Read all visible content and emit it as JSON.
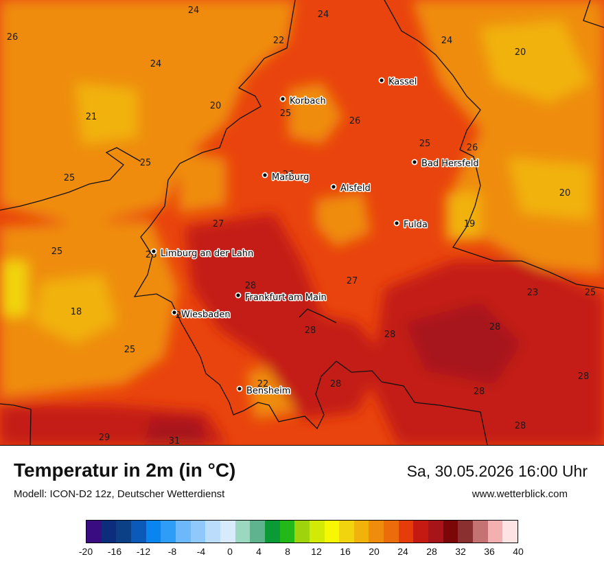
{
  "map": {
    "cities": [
      {
        "name": "Kassel",
        "dot": [
          556,
          117
        ],
        "label": [
          566,
          119
        ]
      },
      {
        "name": "Korbach",
        "dot": [
          412,
          144
        ],
        "label": [
          422,
          147
        ]
      },
      {
        "name": "Bad Hersfeld",
        "dot": [
          604,
          236
        ],
        "label": [
          614,
          238
        ]
      },
      {
        "name": "Marburg",
        "dot": [
          386,
          255
        ],
        "label": [
          396,
          258
        ]
      },
      {
        "name": "Alsfeld",
        "dot": [
          486,
          272
        ],
        "label": [
          496,
          274
        ]
      },
      {
        "name": "Fulda",
        "dot": [
          578,
          325
        ],
        "label": [
          588,
          327
        ]
      },
      {
        "name": "Limburg an der Lahn",
        "dot": [
          224,
          366
        ],
        "label": [
          234,
          369
        ]
      },
      {
        "name": "Frankfurt am Main",
        "dot": [
          347,
          430
        ],
        "label": [
          357,
          433
        ]
      },
      {
        "name": "Wiesbaden",
        "dot": [
          254,
          455
        ],
        "label": [
          264,
          458
        ]
      },
      {
        "name": "Bensheim",
        "dot": [
          349,
          566
        ],
        "label": [
          359,
          569
        ]
      }
    ],
    "temperature_values": [
      {
        "v": "24",
        "p": [
          282,
          14
        ]
      },
      {
        "v": "24",
        "p": [
          471,
          20
        ]
      },
      {
        "v": "26",
        "p": [
          18,
          53
        ]
      },
      {
        "v": "22",
        "p": [
          406,
          58
        ]
      },
      {
        "v": "24",
        "p": [
          651,
          58
        ]
      },
      {
        "v": "20",
        "p": [
          758,
          75
        ]
      },
      {
        "v": "24",
        "p": [
          227,
          92
        ]
      },
      {
        "v": "20",
        "p": [
          314,
          153
        ]
      },
      {
        "v": "25",
        "p": [
          416,
          164
        ]
      },
      {
        "v": "21",
        "p": [
          133,
          169
        ]
      },
      {
        "v": "26",
        "p": [
          517,
          175
        ]
      },
      {
        "v": "25",
        "p": [
          619,
          208
        ]
      },
      {
        "v": "26",
        "p": [
          688,
          214
        ]
      },
      {
        "v": "25",
        "p": [
          212,
          236
        ]
      },
      {
        "v": "26",
        "p": [
          420,
          253
        ]
      },
      {
        "v": "25",
        "p": [
          101,
          258
        ]
      },
      {
        "v": "20",
        "p": [
          823,
          280
        ]
      },
      {
        "v": "27",
        "p": [
          318,
          325
        ]
      },
      {
        "v": "19",
        "p": [
          684,
          325
        ]
      },
      {
        "v": "25",
        "p": [
          83,
          365
        ]
      },
      {
        "v": "26",
        "p": [
          220,
          370
        ]
      },
      {
        "v": "28",
        "p": [
          365,
          415
        ]
      },
      {
        "v": "27",
        "p": [
          513,
          408
        ]
      },
      {
        "v": "23",
        "p": [
          776,
          425
        ]
      },
      {
        "v": "25",
        "p": [
          860,
          425
        ]
      },
      {
        "v": "18",
        "p": [
          111,
          453
        ]
      },
      {
        "v": "26",
        "p": [
          264,
          458
        ]
      },
      {
        "v": "28",
        "p": [
          452,
          480
        ]
      },
      {
        "v": "28",
        "p": [
          721,
          475
        ]
      },
      {
        "v": "28",
        "p": [
          568,
          486
        ]
      },
      {
        "v": "25",
        "p": [
          189,
          508
        ]
      },
      {
        "v": "28",
        "p": [
          850,
          547
        ]
      },
      {
        "v": "22",
        "p": [
          383,
          558
        ]
      },
      {
        "v": "28",
        "p": [
          489,
          558
        ]
      },
      {
        "v": "28",
        "p": [
          698,
          569
        ]
      },
      {
        "v": "28",
        "p": [
          758,
          619
        ]
      },
      {
        "v": "29",
        "p": [
          152,
          636
        ]
      },
      {
        "v": "31",
        "p": [
          254,
          641
        ]
      }
    ]
  },
  "footer": {
    "title": "Temperatur in 2m (in °C)",
    "model": "Modell: ICON-D2 12z, Deutscher Wetterdienst",
    "datetime": "Sa, 30.05.2026 16:00 Uhr",
    "site": "www.wetterblick.com"
  },
  "legend": {
    "colors": [
      "#3a0c82",
      "#0b2d7c",
      "#0b3f86",
      "#0b59b8",
      "#0a84ee",
      "#2e9df7",
      "#6cb8fb",
      "#8fc8fb",
      "#bcdcfc",
      "#d8ebfd",
      "#9ad9bf",
      "#5fb38e",
      "#0a9a36",
      "#22b817",
      "#9fd40d",
      "#d3ea06",
      "#f6f700",
      "#f1d40e",
      "#f1b20c",
      "#ef8c0c",
      "#ec6c0c",
      "#e63c0c",
      "#c41a12",
      "#a7141a",
      "#7b0709",
      "#8b3030",
      "#c47272",
      "#f2b1b0",
      "#fde3e3"
    ],
    "ticks": [
      "-20",
      "-16",
      "-12",
      "-8",
      "-4",
      "0",
      "4",
      "8",
      "12",
      "16",
      "20",
      "24",
      "28",
      "32",
      "36",
      "40"
    ]
  }
}
